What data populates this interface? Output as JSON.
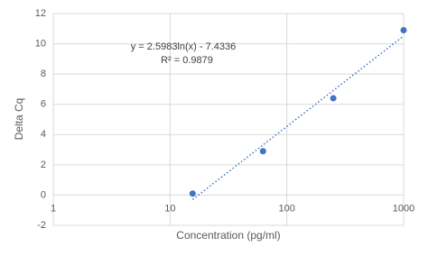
{
  "chart_data": {
    "type": "scatter",
    "x_label": "Concentration (pg/ml)",
    "y_label": "Delta Cq",
    "series": [
      {
        "color": "#4472c4",
        "x": [
          15.6,
          62.5,
          250,
          1000
        ],
        "values": [
          0.1,
          2.9,
          6.4,
          10.9
        ]
      }
    ],
    "xscale": "log",
    "xlim": [
      1,
      1000
    ],
    "xticks": [
      1,
      10,
      100,
      1000
    ],
    "ylim": [
      -2,
      12
    ],
    "yticks": [
      -2,
      0,
      2,
      4,
      6,
      8,
      10,
      12
    ],
    "grid": true,
    "trendline": {
      "kind": "log",
      "coefficients": [
        2.5983,
        -7.4336
      ],
      "color": "#4472c4",
      "equation": "y = 2.5983ln(x) - 7.4336",
      "r_squared": "R² = 0.9879"
    }
  }
}
